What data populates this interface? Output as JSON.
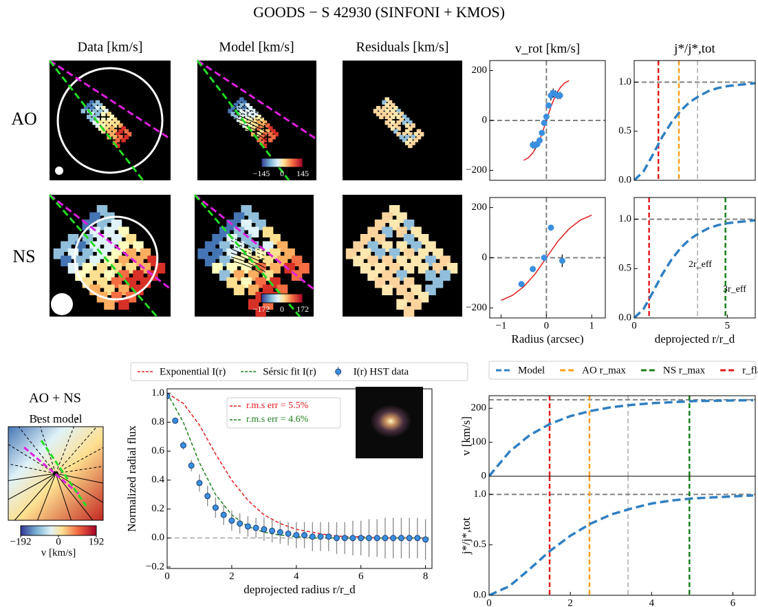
{
  "title": "GOODS − S 42930 (SINFONI + KMOS)",
  "panels": {
    "columns": [
      "Data [km/s]",
      "Model [km/s]",
      "Residuals [km/s]"
    ],
    "rows": [
      "AO",
      "NS"
    ],
    "combined": "AO + NS",
    "best_model": "Best model"
  },
  "chart_data": [
    {
      "type": "scatter",
      "title": "v_rot [km/s]",
      "xlim": [
        -1.25,
        1.3
      ],
      "ylim": [
        -240,
        240
      ],
      "yticks": [
        {
          "value": -200,
          "label": "−200"
        },
        0,
        200
      ],
      "ref_lines": {
        "x": [
          0
        ],
        "y": [
          0
        ]
      },
      "series": [
        {
          "style": "line",
          "color": "#e31a1c",
          "x": [
            -0.5,
            -0.4,
            -0.3,
            -0.2,
            -0.1,
            0,
            0.1,
            0.2,
            0.3,
            0.4,
            0.5
          ],
          "values": [
            -160,
            -150,
            -130,
            -100,
            -55,
            0,
            55,
            100,
            130,
            150,
            160
          ]
        },
        {
          "style": "points",
          "color": "#3a8fe0",
          "x": [
            -0.3,
            -0.25,
            -0.2,
            -0.15,
            -0.1,
            -0.05,
            0,
            0.05,
            0.1,
            0.15,
            0.2,
            0.25,
            0.3
          ],
          "values": [
            -98,
            -100,
            -95,
            -80,
            -50,
            -10,
            15,
            60,
            100,
            110,
            105,
            100,
            100
          ],
          "errors": [
            15,
            15,
            12,
            10,
            8,
            8,
            8,
            10,
            20,
            18,
            15,
            15,
            15
          ]
        }
      ]
    },
    {
      "type": "line",
      "title": "j*/j*,tot",
      "xlim": [
        0,
        6.5
      ],
      "ylim": [
        0,
        1.22
      ],
      "yticks": [
        {
          "value": 0,
          "label": "0.0"
        },
        0.5,
        {
          "value": 1,
          "label": "1.0"
        }
      ],
      "ref_lines": {
        "y": [
          1
        ]
      },
      "vlines": [
        {
          "value": 1.3,
          "color": "#e31a1c"
        },
        {
          "value": 2.4,
          "color": "#ff9f1c"
        },
        {
          "value": 3.4,
          "color": "#808080",
          "width": 1
        }
      ],
      "series": [
        {
          "style": "line",
          "color": "#2f7fc1",
          "x": [
            0,
            0.5,
            1,
            1.5,
            2,
            2.5,
            3,
            3.5,
            4,
            4.5,
            5,
            5.5,
            6,
            6.5
          ],
          "values": [
            0,
            0.09,
            0.26,
            0.44,
            0.59,
            0.71,
            0.8,
            0.86,
            0.91,
            0.94,
            0.96,
            0.97,
            0.98,
            0.99
          ]
        }
      ]
    },
    {
      "type": "scatter",
      "xlabel": "Radius (arcsec)",
      "xlim": [
        -1.25,
        1.3
      ],
      "ylim": [
        -240,
        240
      ],
      "xticks": [
        {
          "value": -1,
          "label": "−1"
        },
        0,
        1
      ],
      "yticks": [
        {
          "value": -200,
          "label": "−200"
        },
        0,
        200
      ],
      "ref_lines": {
        "x": [
          0
        ],
        "y": [
          0
        ]
      },
      "series": [
        {
          "style": "line",
          "color": "#e31a1c",
          "x": [
            -1,
            -0.75,
            -0.5,
            -0.25,
            0,
            0.25,
            0.5,
            0.75,
            1
          ],
          "values": [
            -170,
            -150,
            -115,
            -65,
            0,
            65,
            115,
            150,
            170
          ]
        },
        {
          "style": "points",
          "color": "#3a8fe0",
          "x": [
            -0.55,
            -0.3,
            -0.05,
            0.1,
            0.35
          ],
          "values": [
            -105,
            -45,
            0,
            120,
            -12
          ],
          "errors": [
            5,
            5,
            5,
            5,
            25
          ]
        }
      ]
    },
    {
      "type": "line",
      "xlabel": "deprojected r/r_d",
      "xlim": [
        0,
        6.5
      ],
      "ylim": [
        0,
        1.22
      ],
      "xticks": [
        0,
        5
      ],
      "yticks": [
        {
          "value": 0,
          "label": "0.0"
        },
        0.5,
        {
          "value": 1,
          "label": "1.0"
        }
      ],
      "ref_lines": {
        "y": [
          1
        ]
      },
      "vlines": [
        {
          "value": 0.8,
          "color": "#e31a1c"
        },
        {
          "value": 3.4,
          "color": "#808080",
          "width": 1
        },
        {
          "value": 4.9,
          "color": "#1a7f1a"
        }
      ],
      "annotations": [
        {
          "text": "2r_eff",
          "color": "#000000"
        },
        {
          "text": "3r_eff",
          "color": "#000000"
        }
      ],
      "series": [
        {
          "style": "line",
          "color": "#2f7fc1",
          "x": [
            0,
            0.5,
            1,
            1.5,
            2,
            2.5,
            3,
            3.5,
            4,
            4.5,
            5,
            5.5,
            6,
            6.5
          ],
          "values": [
            0,
            0.09,
            0.26,
            0.44,
            0.59,
            0.71,
            0.8,
            0.86,
            0.91,
            0.94,
            0.96,
            0.97,
            0.98,
            0.99
          ]
        }
      ]
    },
    {
      "type": "line",
      "xlabel": "deprojected radius r/r_d",
      "ylabel": "Normalized radial flux",
      "xlim": [
        0,
        8.2
      ],
      "ylim": [
        -0.21,
        1.03
      ],
      "xticks": [
        0,
        2,
        4,
        6,
        8
      ],
      "yticks": [
        {
          "value": -0.2,
          "label": "−0.2"
        },
        {
          "value": 0,
          "label": "0.0"
        },
        0.2,
        0.4,
        0.6,
        0.8,
        {
          "value": 1,
          "label": "1.0"
        }
      ],
      "ref_lines": {
        "y": [
          0
        ]
      },
      "annotations": [
        {
          "text": "r.m.s err = 5.5%",
          "color": "#e31a1c"
        },
        {
          "text": "r.m.s err = 4.6%",
          "color": "#1a7f1a"
        }
      ],
      "series": [
        {
          "name": "Exponential I(r)",
          "style": "line",
          "color": "#e31a1c",
          "x": [
            0,
            0.5,
            1,
            1.5,
            2,
            2.5,
            3,
            3.5,
            4,
            4.5,
            5,
            5.5,
            6,
            6.5,
            7,
            7.5,
            8
          ],
          "values": [
            1.0,
            0.93,
            0.78,
            0.58,
            0.4,
            0.26,
            0.16,
            0.1,
            0.06,
            0.04,
            0.02,
            0.01,
            0.01,
            0,
            0,
            0,
            0
          ]
        },
        {
          "name": "Sérsic fit I(r)",
          "style": "line",
          "color": "#1a7f1a",
          "x": [
            0,
            0.5,
            1,
            1.5,
            2,
            2.5,
            3,
            3.5,
            4,
            4.5,
            5,
            5.5,
            6,
            6.5,
            7,
            7.5,
            8
          ],
          "values": [
            1.0,
            0.8,
            0.52,
            0.3,
            0.16,
            0.08,
            0.04,
            0.02,
            0.01,
            0,
            0,
            0,
            0,
            0,
            0,
            0,
            0
          ]
        },
        {
          "name": "I(r) HST data",
          "style": "points",
          "color": "#3a8fe0",
          "x": [
            0,
            0.25,
            0.5,
            0.75,
            1,
            1.25,
            1.5,
            1.75,
            2,
            2.25,
            2.5,
            2.75,
            3,
            3.25,
            3.5,
            3.75,
            4,
            4.25,
            4.5,
            4.75,
            5,
            5.25,
            5.5,
            5.75,
            6,
            6.25,
            6.5,
            6.75,
            7,
            7.25,
            7.5,
            7.75,
            8
          ],
          "values": [
            0.98,
            0.81,
            0.64,
            0.5,
            0.38,
            0.29,
            0.21,
            0.16,
            0.12,
            0.1,
            0.08,
            0.07,
            0.06,
            0.05,
            0.04,
            0.03,
            0.02,
            0.02,
            0.01,
            0.01,
            0.01,
            0,
            0,
            0,
            0,
            0,
            0,
            0,
            0,
            0,
            0,
            0,
            -0.01
          ],
          "errors": [
            0.01,
            0.02,
            0.03,
            0.04,
            0.06,
            0.07,
            0.07,
            0.07,
            0.07,
            0.07,
            0.07,
            0.07,
            0.08,
            0.08,
            0.08,
            0.08,
            0.09,
            0.09,
            0.1,
            0.1,
            0.1,
            0.11,
            0.11,
            0.12,
            0.12,
            0.13,
            0.13,
            0.14,
            0.14,
            0.14,
            0.14,
            0.14,
            0.14
          ]
        }
      ]
    },
    {
      "type": "line",
      "ylabel": "v [km/s]",
      "xlim": [
        0,
        6.55
      ],
      "ylim": [
        0,
        237
      ],
      "yticks": [
        0,
        100,
        200
      ],
      "ref_lines": {
        "y": [
          225
        ]
      },
      "vlines": [
        {
          "name": "AO r_max",
          "value": 2.47,
          "color": "#ff9f1c"
        },
        {
          "name": "NS r_max",
          "value": 4.93,
          "color": "#1a7f1a"
        },
        {
          "name": "r_flat",
          "value": 1.49,
          "color": "#e31a1c"
        },
        {
          "value": 3.42,
          "color": "#808080",
          "width": 1
        }
      ],
      "series": [
        {
          "name": "Model",
          "style": "line",
          "color": "#2f7fc1",
          "x": [
            0,
            0.5,
            1,
            1.5,
            2,
            2.5,
            3,
            3.5,
            4,
            4.5,
            5,
            5.5,
            6,
            6.5
          ],
          "values": [
            0,
            72,
            121,
            154,
            177,
            192,
            203,
            210,
            215,
            218,
            221,
            222,
            223,
            224
          ]
        }
      ]
    },
    {
      "type": "line",
      "xlabel": "deprojected r/r_d",
      "ylabel": "j*/j*,tot",
      "xlim": [
        0,
        6.55
      ],
      "ylim": [
        0,
        1.18
      ],
      "xticks": [
        0,
        2,
        4,
        6
      ],
      "yticks": [
        {
          "value": 0,
          "label": "0.0"
        },
        0.5,
        {
          "value": 1,
          "label": "1.0"
        }
      ],
      "ref_lines": {
        "y": [
          1
        ]
      },
      "vlines": [
        {
          "value": 2.47,
          "color": "#ff9f1c"
        },
        {
          "value": 4.93,
          "color": "#1a7f1a"
        },
        {
          "value": 1.49,
          "color": "#e31a1c"
        },
        {
          "value": 3.42,
          "color": "#808080",
          "width": 1
        }
      ],
      "series": [
        {
          "style": "line",
          "color": "#2f7fc1",
          "x": [
            0,
            0.5,
            1,
            1.5,
            2,
            2.5,
            3,
            3.5,
            4,
            4.5,
            5,
            5.5,
            6,
            6.5
          ],
          "values": [
            0,
            0.09,
            0.26,
            0.44,
            0.59,
            0.71,
            0.8,
            0.86,
            0.91,
            0.94,
            0.96,
            0.97,
            0.98,
            0.99
          ]
        }
      ]
    },
    {
      "type": "colorbar",
      "xlim": [
        -145,
        145
      ],
      "xticks": [
        {
          "value": -145,
          "label": "−145"
        },
        0,
        145
      ]
    },
    {
      "type": "colorbar",
      "xlim": [
        -172,
        172
      ],
      "xticks": [
        {
          "value": -172,
          "label": "−172"
        },
        0,
        172
      ]
    },
    {
      "type": "colorbar",
      "xlabel": "v [km/s]",
      "xlim": [
        -192,
        192
      ],
      "xticks": [
        {
          "value": -192,
          "label": "−192"
        },
        0,
        192
      ]
    }
  ]
}
